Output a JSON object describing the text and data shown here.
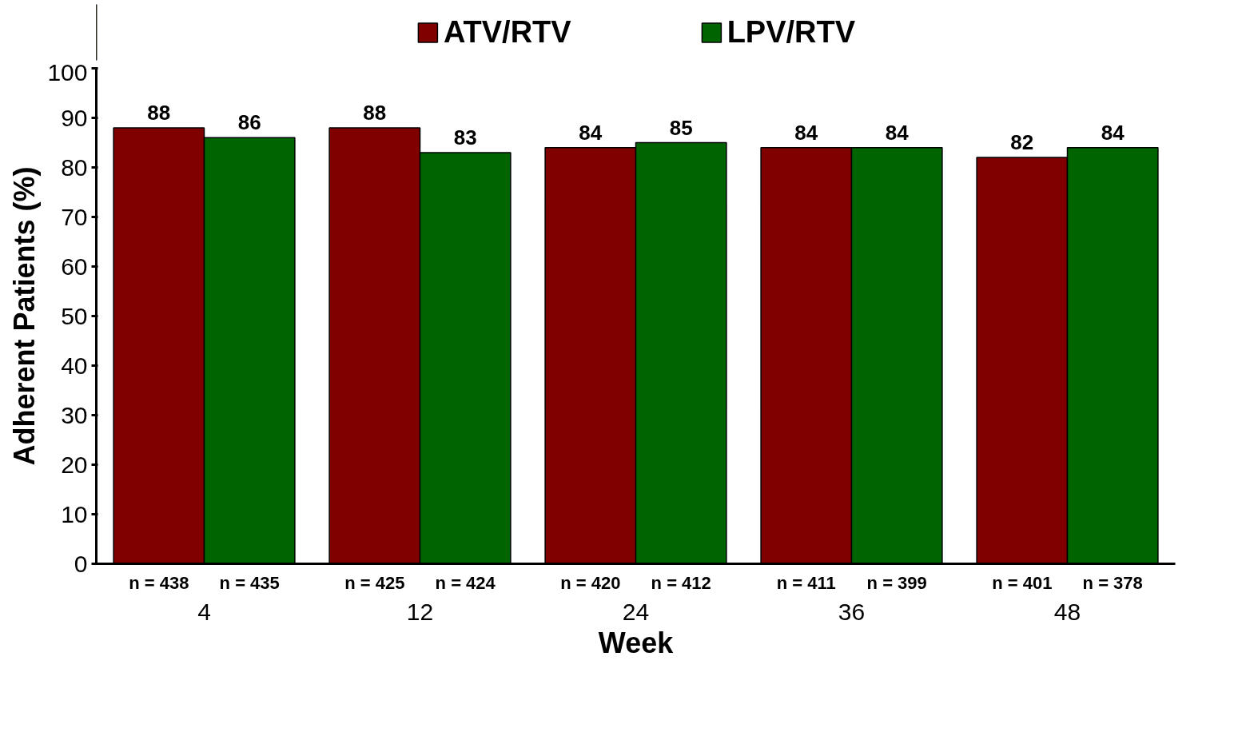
{
  "chart_data": {
    "type": "bar",
    "xlabel": "Week",
    "ylabel": "Adherent Patients (%)",
    "categories": [
      "4",
      "12",
      "24",
      "36",
      "48"
    ],
    "series": [
      {
        "name": "ATV/RTV",
        "color": "#800000",
        "values": [
          88,
          88,
          84,
          84,
          82
        ]
      },
      {
        "name": "LPV/RTV",
        "color": "#006400",
        "values": [
          86,
          83,
          85,
          84,
          84
        ]
      }
    ],
    "ylim": [
      0,
      100
    ],
    "yticks": [
      0,
      10,
      20,
      30,
      40,
      50,
      60,
      70,
      80,
      90,
      100
    ],
    "data_labels": true,
    "legend": "top",
    "grid": false,
    "annotations": [
      "n = 438",
      "n = 435",
      "n = 425",
      "n = 424",
      "n = 420",
      "n = 412",
      "n = 411",
      "n = 399",
      "n = 401",
      "n = 378"
    ]
  }
}
